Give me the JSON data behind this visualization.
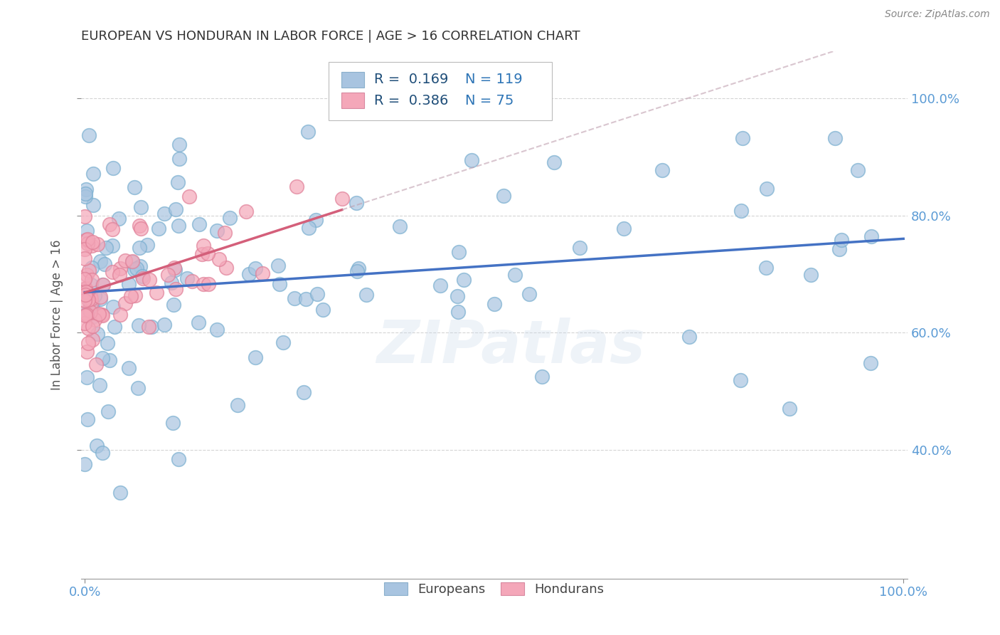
{
  "title": "EUROPEAN VS HONDURAN IN LABOR FORCE | AGE > 16 CORRELATION CHART",
  "source_text": "Source: ZipAtlas.com",
  "ylabel": "In Labor Force | Age > 16",
  "r_european": 0.169,
  "n_european": 119,
  "r_honduran": 0.386,
  "n_honduran": 75,
  "european_color": "#a8c4e0",
  "honduran_color": "#f4a7b9",
  "european_line_color": "#4472c4",
  "honduran_line_color": "#d45f7a",
  "watermark": "ZIPatlas",
  "background_color": "#ffffff",
  "grid_color": "#d0d0d0",
  "title_color": "#333333",
  "tick_color": "#5b9bd5",
  "legend_r_color": "#1f4e79",
  "legend_n_color": "#2e75b6",
  "xlim": [
    -0.005,
    1.005
  ],
  "ylim": [
    0.18,
    1.08
  ],
  "x_ticks": [
    0.0,
    1.0
  ],
  "x_tick_labels": [
    "0.0%",
    "100.0%"
  ],
  "y_ticks": [
    0.4,
    0.6,
    0.8,
    1.0
  ],
  "y_tick_labels": [
    "40.0%",
    "60.0%",
    "80.0%",
    "100.0%"
  ]
}
